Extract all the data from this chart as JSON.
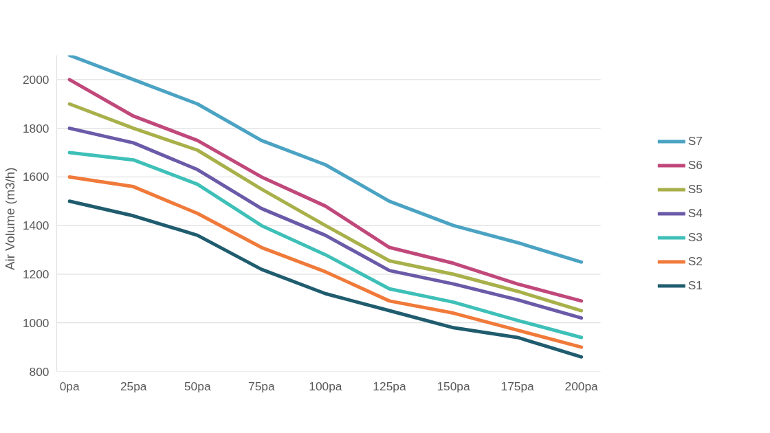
{
  "chart_data": {
    "type": "line",
    "ylabel": "Air  Volume   (m3/h)",
    "categories": [
      "0pa",
      "25pa",
      "50pa",
      "75pa",
      "100pa",
      "125pa",
      "150pa",
      "175pa",
      "200pa"
    ],
    "series": [
      {
        "name": "S7",
        "color": "#4ba3c3",
        "values": [
          2100,
          2000,
          1900,
          1750,
          1650,
          1500,
          1400,
          1330,
          1250
        ]
      },
      {
        "name": "S6",
        "color": "#c0487a",
        "values": [
          2000,
          1850,
          1750,
          1600,
          1480,
          1310,
          1245,
          1160,
          1090
        ]
      },
      {
        "name": "S5",
        "color": "#a8b04a",
        "values": [
          1900,
          1800,
          1710,
          1550,
          1400,
          1255,
          1200,
          1130,
          1050
        ]
      },
      {
        "name": "S4",
        "color": "#6a5aa8",
        "values": [
          1800,
          1740,
          1630,
          1470,
          1360,
          1215,
          1160,
          1095,
          1020
        ]
      },
      {
        "name": "S3",
        "color": "#3ec0b8",
        "values": [
          1700,
          1670,
          1570,
          1400,
          1280,
          1140,
          1085,
          1010,
          940
        ]
      },
      {
        "name": "S2",
        "color": "#f07a3a",
        "values": [
          1600,
          1560,
          1450,
          1310,
          1210,
          1090,
          1040,
          970,
          900
        ]
      },
      {
        "name": "S1",
        "color": "#1f5c6e",
        "values": [
          1500,
          1440,
          1360,
          1220,
          1120,
          1050,
          980,
          940,
          860
        ]
      }
    ],
    "ylim": [
      800,
      2100
    ],
    "yticks": [
      800,
      1000,
      1200,
      1400,
      1600,
      1800,
      2000
    ],
    "grid": "y",
    "legend": "right",
    "line_style": "solid",
    "marker": "none"
  }
}
